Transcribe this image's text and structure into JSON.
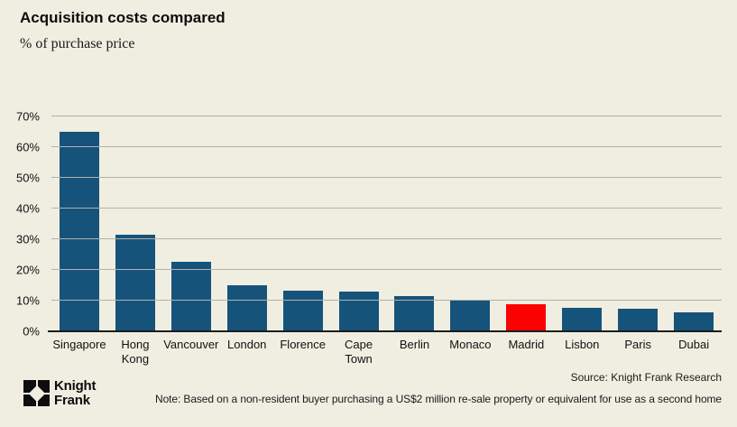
{
  "page": {
    "background_color": "#f0eee1"
  },
  "header": {
    "title": "Acquisition costs compared",
    "subtitle": "% of purchase price"
  },
  "chart_data": {
    "type": "bar",
    "title": "Acquisition costs compared",
    "subtitle": "% of purchase price",
    "categories": [
      "Singapore",
      "Hong\nKong",
      "Vancouver",
      "London",
      "Florence",
      "Cape\nTown",
      "Berlin",
      "Monaco",
      "Madrid",
      "Lisbon",
      "Paris",
      "Dubai"
    ],
    "values": [
      65,
      31.4,
      22.6,
      15.1,
      13.3,
      12.8,
      11.4,
      10.4,
      8.7,
      7.6,
      7.4,
      6.1
    ],
    "ylim": [
      0,
      70
    ],
    "ytick_step": 10,
    "ytick_suffix": "%",
    "grid": true,
    "legend": "none",
    "bar_color": "#15537b",
    "highlight_index": 8,
    "highlight_color": "#fb0202",
    "gridline_color": "#b3b2a9"
  },
  "footer": {
    "logo": {
      "icon": "knight-frank-mark",
      "line1": "Knight",
      "line2": "Frank"
    },
    "source": "Source: Knight Frank Research",
    "note": "Note: Based on a non-resident buyer purchasing a US$2 million re-sale property or equivalent for use as a second home"
  }
}
